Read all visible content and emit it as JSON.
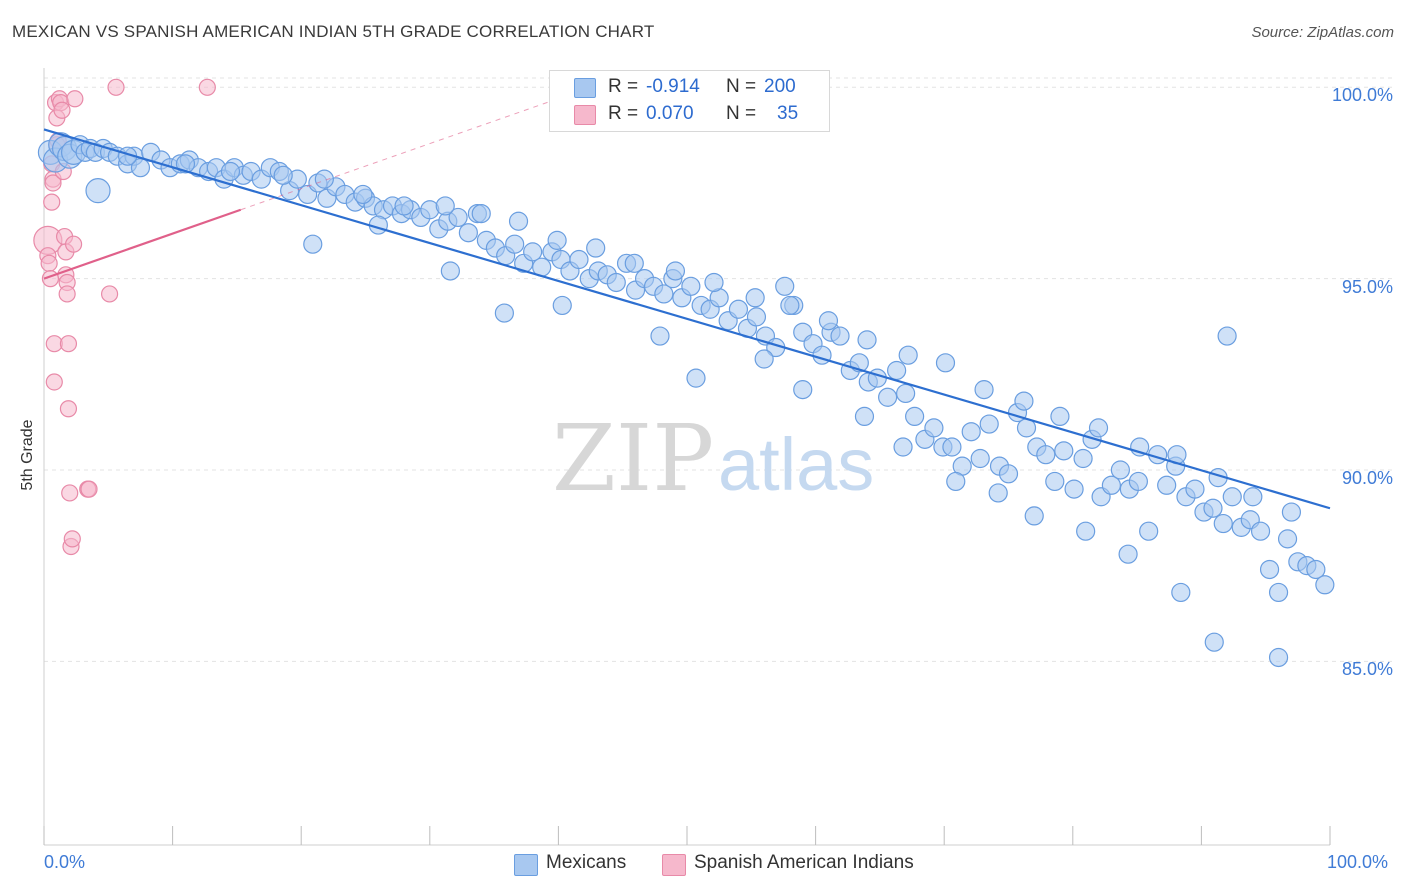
{
  "title": "MEXICAN VS SPANISH AMERICAN INDIAN 5TH GRADE CORRELATION CHART",
  "source": "Source: ZipAtlas.com",
  "watermark": {
    "zip": "ZIP",
    "atlas": "atlas"
  },
  "colors": {
    "blue_fill": "#a8c8f0",
    "blue_stroke": "#6a9ee0",
    "blue_line": "#2d6fd0",
    "pink_fill": "#f6b8cc",
    "pink_stroke": "#e88aa8",
    "pink_line": "#e0608a",
    "grid": "#e3e3e3",
    "tick_text": "#3f7bd6"
  },
  "legend": {
    "rows": [
      {
        "r_label": "R =",
        "r_value": "-0.914",
        "n_label": "N =",
        "n_value": "200"
      },
      {
        "r_label": "R =",
        "r_value": "0.070",
        "n_label": "N =",
        "n_value": "35"
      }
    ]
  },
  "bottom_legend": {
    "mexicans": "Mexicans",
    "spanish": "Spanish American Indians"
  },
  "chart_data": {
    "type": "scatter",
    "title": "MEXICAN VS SPANISH AMERICAN INDIAN 5TH GRADE CORRELATION CHART",
    "xlabel": "",
    "ylabel": "5th Grade",
    "xlim": [
      0,
      100
    ],
    "ylim": [
      80.2,
      100.4
    ],
    "x_tick_labels": [
      "0.0%",
      "100.0%"
    ],
    "y_ticks": [
      85,
      90,
      95,
      100
    ],
    "y_tick_labels": [
      "85.0%",
      "90.0%",
      "95.0%",
      "100.0%"
    ],
    "series": [
      {
        "name": "Mexicans",
        "r": -0.914,
        "n": 200,
        "trend": {
          "x": [
            0,
            100
          ],
          "y": [
            98.9,
            89.0
          ]
        },
        "points": [
          [
            0.5,
            98.3
          ],
          [
            0.9,
            98.1
          ],
          [
            1.3,
            98.5
          ],
          [
            1.6,
            98.4
          ],
          [
            2.0,
            98.2
          ],
          [
            2.3,
            98.3
          ],
          [
            2.8,
            98.5
          ],
          [
            3.2,
            98.3
          ],
          [
            3.6,
            98.4
          ],
          [
            4.0,
            98.3
          ],
          [
            4.6,
            98.4
          ],
          [
            5.1,
            98.3
          ],
          [
            5.7,
            98.2
          ],
          [
            6.5,
            98.0
          ],
          [
            7.0,
            98.2
          ],
          [
            7.5,
            97.9
          ],
          [
            8.3,
            98.3
          ],
          [
            9.1,
            98.1
          ],
          [
            9.8,
            97.9
          ],
          [
            10.6,
            98.0
          ],
          [
            11.3,
            98.1
          ],
          [
            12.0,
            97.9
          ],
          [
            12.8,
            97.8
          ],
          [
            13.4,
            97.9
          ],
          [
            14.0,
            97.6
          ],
          [
            14.8,
            97.9
          ],
          [
            15.5,
            97.7
          ],
          [
            16.1,
            97.8
          ],
          [
            16.9,
            97.6
          ],
          [
            17.6,
            97.9
          ],
          [
            18.3,
            97.8
          ],
          [
            19.1,
            97.3
          ],
          [
            19.7,
            97.6
          ],
          [
            20.5,
            97.2
          ],
          [
            21.3,
            97.5
          ],
          [
            22.0,
            97.1
          ],
          [
            22.7,
            97.4
          ],
          [
            23.4,
            97.2
          ],
          [
            24.2,
            97.0
          ],
          [
            25.0,
            97.1
          ],
          [
            25.6,
            96.9
          ],
          [
            26.4,
            96.8
          ],
          [
            27.1,
            96.9
          ],
          [
            27.8,
            96.7
          ],
          [
            28.5,
            96.8
          ],
          [
            29.3,
            96.6
          ],
          [
            30.0,
            96.8
          ],
          [
            30.7,
            96.3
          ],
          [
            31.4,
            96.5
          ],
          [
            32.2,
            96.6
          ],
          [
            33.0,
            96.2
          ],
          [
            33.7,
            96.7
          ],
          [
            34.4,
            96.0
          ],
          [
            35.1,
            95.8
          ],
          [
            35.9,
            95.6
          ],
          [
            36.6,
            95.9
          ],
          [
            37.3,
            95.4
          ],
          [
            38.0,
            95.7
          ],
          [
            38.7,
            95.3
          ],
          [
            39.5,
            95.7
          ],
          [
            40.2,
            95.5
          ],
          [
            40.9,
            95.2
          ],
          [
            41.6,
            95.5
          ],
          [
            42.4,
            95.0
          ],
          [
            43.1,
            95.2
          ],
          [
            43.8,
            95.1
          ],
          [
            44.5,
            94.9
          ],
          [
            45.3,
            95.4
          ],
          [
            46.0,
            94.7
          ],
          [
            46.7,
            95.0
          ],
          [
            47.4,
            94.8
          ],
          [
            48.2,
            94.6
          ],
          [
            48.9,
            95.0
          ],
          [
            49.6,
            94.5
          ],
          [
            50.3,
            94.8
          ],
          [
            51.1,
            94.3
          ],
          [
            51.8,
            94.2
          ],
          [
            52.5,
            94.5
          ],
          [
            53.2,
            93.9
          ],
          [
            54.0,
            94.2
          ],
          [
            54.7,
            93.7
          ],
          [
            55.4,
            94.0
          ],
          [
            56.1,
            93.5
          ],
          [
            56.9,
            93.2
          ],
          [
            57.6,
            94.8
          ],
          [
            58.3,
            94.3
          ],
          [
            59.0,
            93.6
          ],
          [
            59.8,
            93.3
          ],
          [
            60.5,
            93.0
          ],
          [
            61.2,
            93.6
          ],
          [
            61.9,
            93.5
          ],
          [
            62.7,
            92.6
          ],
          [
            63.4,
            92.8
          ],
          [
            64.1,
            92.3
          ],
          [
            64.8,
            92.4
          ],
          [
            65.6,
            91.9
          ],
          [
            66.3,
            92.6
          ],
          [
            67.0,
            92.0
          ],
          [
            67.7,
            91.4
          ],
          [
            68.5,
            90.8
          ],
          [
            69.2,
            91.1
          ],
          [
            69.9,
            90.6
          ],
          [
            70.6,
            90.6
          ],
          [
            71.4,
            90.1
          ],
          [
            72.1,
            91.0
          ],
          [
            72.8,
            90.3
          ],
          [
            73.5,
            91.2
          ],
          [
            74.3,
            90.1
          ],
          [
            75.0,
            89.9
          ],
          [
            75.7,
            91.5
          ],
          [
            76.4,
            91.1
          ],
          [
            77.2,
            90.6
          ],
          [
            77.9,
            90.4
          ],
          [
            78.6,
            89.7
          ],
          [
            79.3,
            90.5
          ],
          [
            80.1,
            89.5
          ],
          [
            80.8,
            90.3
          ],
          [
            81.5,
            90.8
          ],
          [
            82.2,
            89.3
          ],
          [
            83.0,
            89.6
          ],
          [
            83.7,
            90.0
          ],
          [
            84.4,
            89.5
          ],
          [
            85.1,
            89.7
          ],
          [
            85.9,
            88.4
          ],
          [
            86.6,
            90.4
          ],
          [
            87.3,
            89.6
          ],
          [
            88.0,
            90.1
          ],
          [
            88.8,
            89.3
          ],
          [
            89.5,
            89.5
          ],
          [
            90.2,
            88.9
          ],
          [
            90.9,
            89.0
          ],
          [
            91.7,
            88.6
          ],
          [
            92.4,
            89.3
          ],
          [
            93.1,
            88.5
          ],
          [
            93.8,
            88.7
          ],
          [
            94.6,
            88.4
          ],
          [
            95.3,
            87.4
          ],
          [
            96.0,
            86.8
          ],
          [
            96.7,
            88.2
          ],
          [
            97.5,
            87.6
          ],
          [
            98.2,
            87.5
          ],
          [
            98.9,
            87.4
          ],
          [
            99.6,
            87.0
          ],
          [
            6.5,
            98.2
          ],
          [
            11.0,
            98.0
          ],
          [
            14.5,
            97.8
          ],
          [
            18.6,
            97.7
          ],
          [
            21.8,
            97.6
          ],
          [
            24.8,
            97.2
          ],
          [
            28.0,
            96.9
          ],
          [
            31.2,
            96.9
          ],
          [
            34.0,
            96.7
          ],
          [
            36.9,
            96.5
          ],
          [
            39.9,
            96.0
          ],
          [
            42.9,
            95.8
          ],
          [
            45.9,
            95.4
          ],
          [
            49.1,
            95.2
          ],
          [
            52.1,
            94.9
          ],
          [
            55.3,
            94.5
          ],
          [
            58.0,
            94.3
          ],
          [
            61.0,
            93.9
          ],
          [
            64.0,
            93.4
          ],
          [
            67.2,
            93.0
          ],
          [
            70.1,
            92.8
          ],
          [
            73.1,
            92.1
          ],
          [
            76.2,
            91.8
          ],
          [
            79.0,
            91.4
          ],
          [
            82.0,
            91.1
          ],
          [
            85.2,
            90.6
          ],
          [
            88.1,
            90.4
          ],
          [
            91.3,
            89.8
          ],
          [
            94.0,
            89.3
          ],
          [
            97.0,
            88.9
          ],
          [
            20.9,
            95.9
          ],
          [
            26.0,
            96.4
          ],
          [
            31.6,
            95.2
          ],
          [
            35.8,
            94.1
          ],
          [
            40.3,
            94.3
          ],
          [
            47.9,
            93.5
          ],
          [
            50.7,
            92.4
          ],
          [
            56.0,
            92.9
          ],
          [
            59.0,
            92.1
          ],
          [
            63.8,
            91.4
          ],
          [
            66.8,
            90.6
          ],
          [
            70.9,
            89.7
          ],
          [
            74.2,
            89.4
          ],
          [
            77.0,
            88.8
          ],
          [
            81.0,
            88.4
          ],
          [
            84.3,
            87.8
          ],
          [
            88.4,
            86.8
          ],
          [
            91.0,
            85.5
          ],
          [
            96.0,
            85.1
          ],
          [
            4.2,
            97.3
          ],
          [
            92.0,
            93.5
          ]
        ]
      },
      {
        "name": "Spanish American Indians",
        "r": 0.07,
        "n": 35,
        "trend": {
          "x": [
            0,
            15.3
          ],
          "y": [
            95.0,
            96.8
          ]
        },
        "points": [
          [
            0.3,
            96.0
          ],
          [
            0.3,
            95.6
          ],
          [
            0.4,
            95.4
          ],
          [
            0.5,
            95.0
          ],
          [
            0.6,
            97.0
          ],
          [
            0.6,
            98.0
          ],
          [
            0.7,
            97.6
          ],
          [
            0.7,
            97.5
          ],
          [
            0.8,
            93.3
          ],
          [
            0.8,
            92.3
          ],
          [
            0.9,
            99.6
          ],
          [
            1.0,
            99.2
          ],
          [
            1.0,
            98.5
          ],
          [
            1.1,
            98.6
          ],
          [
            1.2,
            99.7
          ],
          [
            1.3,
            99.6
          ],
          [
            1.4,
            99.4
          ],
          [
            1.5,
            97.8
          ],
          [
            1.6,
            96.1
          ],
          [
            1.7,
            95.7
          ],
          [
            1.7,
            95.1
          ],
          [
            1.8,
            94.9
          ],
          [
            1.8,
            94.6
          ],
          [
            1.9,
            93.3
          ],
          [
            1.9,
            91.6
          ],
          [
            2.0,
            89.4
          ],
          [
            2.1,
            88.0
          ],
          [
            2.2,
            88.2
          ],
          [
            2.3,
            95.9
          ],
          [
            2.4,
            99.7
          ],
          [
            3.4,
            89.5
          ],
          [
            3.5,
            89.5
          ],
          [
            5.1,
            94.6
          ],
          [
            5.6,
            100.0
          ],
          [
            12.7,
            100.0
          ]
        ]
      }
    ]
  }
}
